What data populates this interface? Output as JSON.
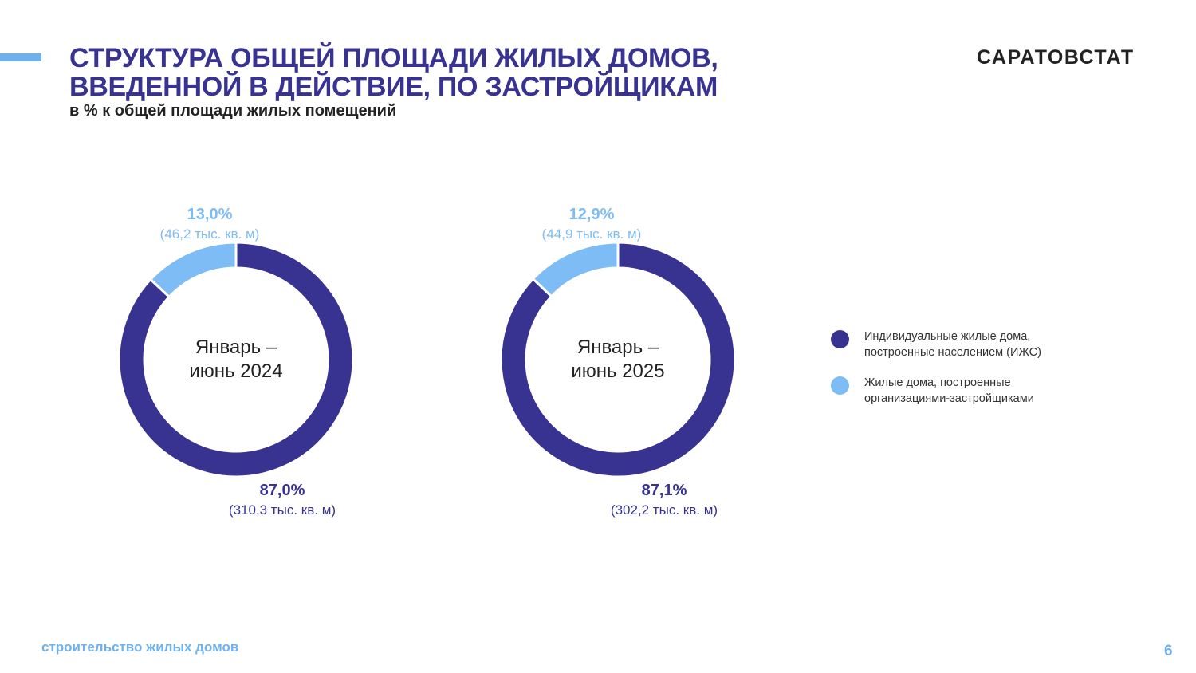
{
  "header": {
    "title_line1": "СТРУКТУРА ОБЩЕЙ ПЛОЩАДИ ЖИЛЫХ ДОМОВ,",
    "title_line2": "ВВЕДЕННОЙ В ДЕЙСТВИЕ, ПО ЗАСТРОЙЩИКАМ",
    "subtitle": "в % к общей площади жилых помещений",
    "brand": "САРАТОВСТАТ"
  },
  "footer": {
    "section": "строительство жилых домов",
    "page_number": "6"
  },
  "colors": {
    "dark": "#383291",
    "light": "#7ebcf6",
    "accent": "#6fb1ee"
  },
  "chart_data": [
    {
      "type": "pie",
      "center_label": [
        "Январь –",
        "июнь 2024"
      ],
      "slices": [
        {
          "name": "Индивидуальные жилые дома, построенные населением (ИЖС)",
          "value": 87.0,
          "label": "87,0%",
          "sublabel": "(310,3 тыс. кв. м)",
          "color": "#383291"
        },
        {
          "name": "Жилые дома,  построенные организациями-застройщиками",
          "value": 13.0,
          "label": "13,0%",
          "sublabel": "(46,2 тыс. кв. м)",
          "color": "#7ebcf6"
        }
      ]
    },
    {
      "type": "pie",
      "center_label": [
        "Январь –",
        "июнь 2025"
      ],
      "slices": [
        {
          "name": "Индивидуальные жилые дома, построенные населением (ИЖС)",
          "value": 87.1,
          "label": "87,1%",
          "sublabel": "(302,2 тыс. кв. м)",
          "color": "#383291"
        },
        {
          "name": "Жилые дома,  построенные организациями-застройщиками",
          "value": 12.9,
          "label": "12,9%",
          "sublabel": "(44,9 тыс. кв. м)",
          "color": "#7ebcf6"
        }
      ]
    }
  ],
  "legend": [
    {
      "text": "Индивидуальные жилые дома,\nпостроенные населением (ИЖС)",
      "color": "#383291"
    },
    {
      "text": "Жилые дома,  построенные\nорганизациями-застройщиками",
      "color": "#7ebcf6"
    }
  ]
}
